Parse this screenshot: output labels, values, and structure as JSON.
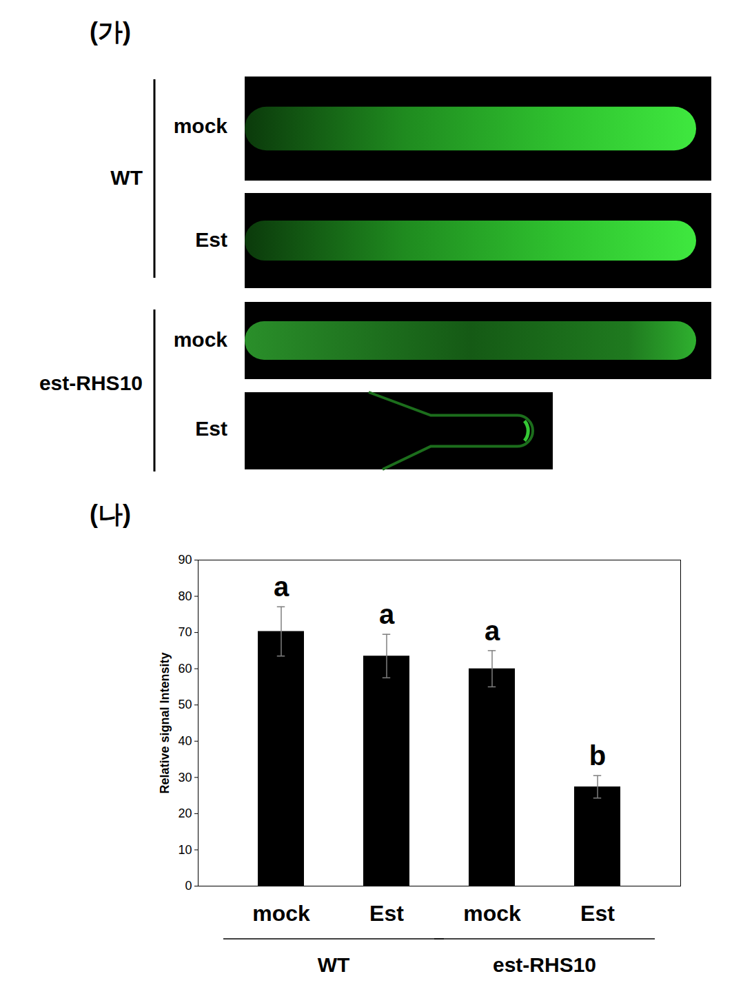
{
  "panel_labels": [
    "(가)",
    "(나)"
  ],
  "panel_a": {
    "groups": [
      {
        "name": "WT",
        "rows": [
          "mock",
          "Est"
        ]
      },
      {
        "name": "est-RHS10",
        "rows": [
          "mock",
          "Est"
        ]
      }
    ]
  },
  "chart_data": {
    "type": "bar",
    "y_label": "Relative signal Intensity",
    "categories": [
      "mock",
      "Est",
      "mock",
      "Est"
    ],
    "groups": [
      "WT",
      "WT",
      "est-RHS10",
      "est-RHS10"
    ],
    "values": [
      70.3,
      63.5,
      60.0,
      27.4
    ],
    "errors": [
      6.8,
      6.0,
      5.0,
      3.1
    ],
    "annotations": [
      "a",
      "a",
      "a",
      "b"
    ],
    "color": "#000000",
    "ylim": [
      0,
      90
    ],
    "yticks": [
      0,
      10,
      20,
      30,
      40,
      50,
      60,
      70,
      80,
      90
    ],
    "grid": false
  }
}
